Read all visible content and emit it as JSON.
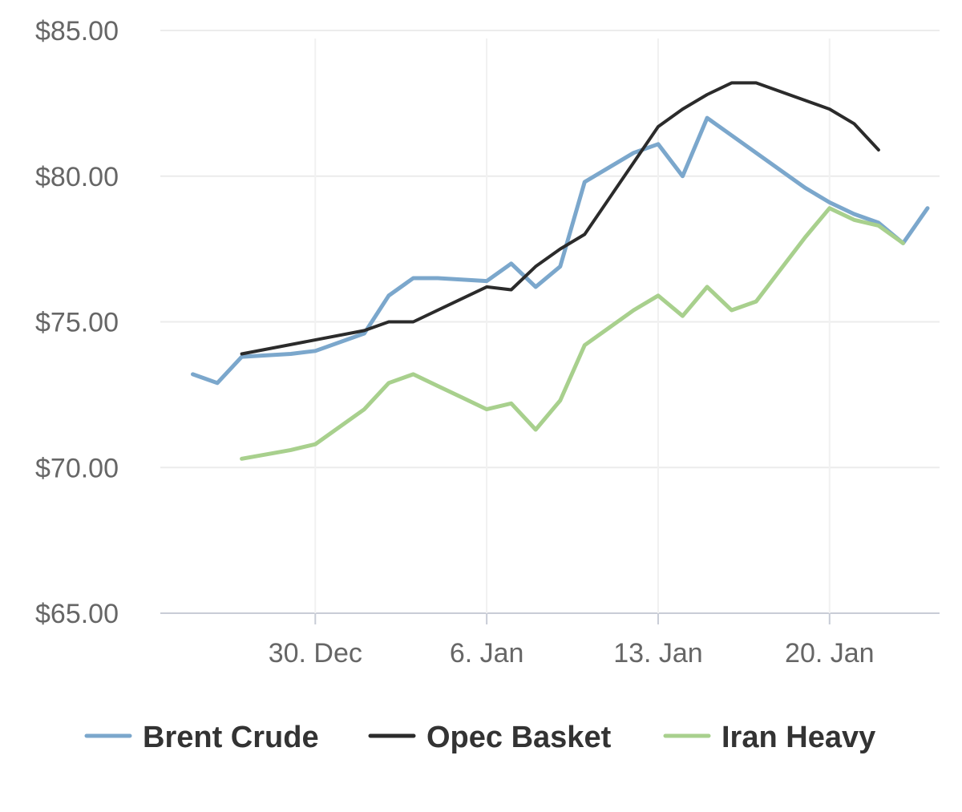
{
  "chart_data": {
    "type": "line",
    "y_axis": {
      "min": 65,
      "max": 85,
      "ticks": [
        65,
        70,
        75,
        80,
        85
      ],
      "tick_labels": [
        "$65.00",
        "$70.00",
        "$75.00",
        "$80.00",
        "$85.00"
      ]
    },
    "x_axis": {
      "min": "2023-12-24",
      "max": "2024-01-24",
      "ticks": [
        "2023-12-30",
        "2024-01-06",
        "2024-01-13",
        "2024-01-20"
      ],
      "tick_labels": [
        "30. Dec",
        "6. Jan",
        "13. Jan",
        "20. Jan"
      ]
    },
    "grid": true,
    "legend_position": "bottom",
    "series": [
      {
        "name": "Brent Crude",
        "color": "#7ba7cc",
        "points": [
          {
            "x": "2023-12-25",
            "y": 73.2
          },
          {
            "x": "2023-12-26",
            "y": 72.9
          },
          {
            "x": "2023-12-27",
            "y": 73.8
          },
          {
            "x": "2023-12-29",
            "y": 73.9
          },
          {
            "x": "2023-12-30",
            "y": 74.0
          },
          {
            "x": "2024-01-01",
            "y": 74.6
          },
          {
            "x": "2024-01-02",
            "y": 75.9
          },
          {
            "x": "2024-01-03",
            "y": 76.5
          },
          {
            "x": "2024-01-04",
            "y": 76.5
          },
          {
            "x": "2024-01-06",
            "y": 76.4
          },
          {
            "x": "2024-01-07",
            "y": 77.0
          },
          {
            "x": "2024-01-08",
            "y": 76.2
          },
          {
            "x": "2024-01-09",
            "y": 76.9
          },
          {
            "x": "2024-01-10",
            "y": 79.8
          },
          {
            "x": "2024-01-11",
            "y": 80.3
          },
          {
            "x": "2024-01-12",
            "y": 80.8
          },
          {
            "x": "2024-01-13",
            "y": 81.1
          },
          {
            "x": "2024-01-14",
            "y": 80.0
          },
          {
            "x": "2024-01-15",
            "y": 82.0
          },
          {
            "x": "2024-01-16",
            "y": 81.4
          },
          {
            "x": "2024-01-19",
            "y": 79.6
          },
          {
            "x": "2024-01-20",
            "y": 79.1
          },
          {
            "x": "2024-01-21",
            "y": 78.7
          },
          {
            "x": "2024-01-22",
            "y": 78.4
          },
          {
            "x": "2024-01-23",
            "y": 77.7
          },
          {
            "x": "2024-01-24",
            "y": 78.9
          }
        ]
      },
      {
        "name": "Opec Basket",
        "color": "#2b2b2b",
        "points": [
          {
            "x": "2023-12-27",
            "y": 73.9
          },
          {
            "x": "2024-01-01",
            "y": 74.7
          },
          {
            "x": "2024-01-02",
            "y": 75.0
          },
          {
            "x": "2024-01-03",
            "y": 75.0
          },
          {
            "x": "2024-01-06",
            "y": 76.2
          },
          {
            "x": "2024-01-07",
            "y": 76.1
          },
          {
            "x": "2024-01-08",
            "y": 76.9
          },
          {
            "x": "2024-01-09",
            "y": 77.5
          },
          {
            "x": "2024-01-10",
            "y": 78.0
          },
          {
            "x": "2024-01-13",
            "y": 81.7
          },
          {
            "x": "2024-01-14",
            "y": 82.3
          },
          {
            "x": "2024-01-15",
            "y": 82.8
          },
          {
            "x": "2024-01-16",
            "y": 83.2
          },
          {
            "x": "2024-01-17",
            "y": 83.2
          },
          {
            "x": "2024-01-20",
            "y": 82.3
          },
          {
            "x": "2024-01-21",
            "y": 81.8
          },
          {
            "x": "2024-01-22",
            "y": 80.9
          }
        ]
      },
      {
        "name": "Iran Heavy",
        "color": "#a8d08d",
        "points": [
          {
            "x": "2023-12-27",
            "y": 70.3
          },
          {
            "x": "2023-12-29",
            "y": 70.6
          },
          {
            "x": "2023-12-30",
            "y": 70.8
          },
          {
            "x": "2024-01-01",
            "y": 72.0
          },
          {
            "x": "2024-01-02",
            "y": 72.9
          },
          {
            "x": "2024-01-03",
            "y": 73.2
          },
          {
            "x": "2024-01-04",
            "y": 72.8
          },
          {
            "x": "2024-01-05",
            "y": 72.4
          },
          {
            "x": "2024-01-06",
            "y": 72.0
          },
          {
            "x": "2024-01-07",
            "y": 72.2
          },
          {
            "x": "2024-01-08",
            "y": 71.3
          },
          {
            "x": "2024-01-09",
            "y": 72.3
          },
          {
            "x": "2024-01-10",
            "y": 74.2
          },
          {
            "x": "2024-01-11",
            "y": 74.8
          },
          {
            "x": "2024-01-12",
            "y": 75.4
          },
          {
            "x": "2024-01-13",
            "y": 75.9
          },
          {
            "x": "2024-01-14",
            "y": 75.2
          },
          {
            "x": "2024-01-15",
            "y": 76.2
          },
          {
            "x": "2024-01-16",
            "y": 75.4
          },
          {
            "x": "2024-01-17",
            "y": 75.7
          },
          {
            "x": "2024-01-18",
            "y": 76.8
          },
          {
            "x": "2024-01-19",
            "y": 77.9
          },
          {
            "x": "2024-01-20",
            "y": 78.9
          },
          {
            "x": "2024-01-21",
            "y": 78.5
          },
          {
            "x": "2024-01-22",
            "y": 78.3
          },
          {
            "x": "2024-01-23",
            "y": 77.7
          }
        ]
      }
    ]
  }
}
